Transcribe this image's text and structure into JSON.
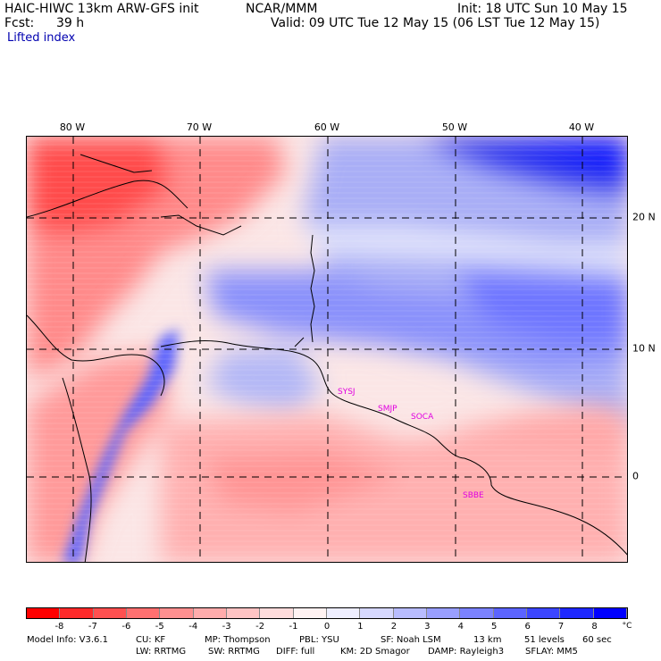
{
  "header": {
    "model_title": "HAIC-HIWC 13km ARW-GFS init",
    "org": "NCAR/MMM",
    "init": "Init: 18 UTC Sun 10 May 15",
    "fcst_label": "Fcst:",
    "fcst_value": "39 h",
    "valid": "Valid: 09 UTC Tue 12 May 15 (06 LST Tue 12 May 15)",
    "field": "Lifted index"
  },
  "map": {
    "lon_labels": [
      "80 W",
      "70 W",
      "60 W",
      "50 W",
      "40 W"
    ],
    "lat_labels": [
      "20 N",
      "10 N",
      "0"
    ],
    "places": [
      "SYSJ",
      "SMJP",
      "SOCA",
      "SBBE"
    ]
  },
  "colorbar": {
    "ticks": [
      "-8",
      "-7",
      "-6",
      "-5",
      "-4",
      "-3",
      "-2",
      "-1",
      "0",
      "1",
      "2",
      "3",
      "4",
      "5",
      "6",
      "7",
      "8"
    ],
    "unit": "°C",
    "colors": [
      "#ff0000",
      "#ff2a2a",
      "#ff5050",
      "#ff7070",
      "#ff9090",
      "#ffacac",
      "#ffc4c4",
      "#ffdcdc",
      "#fff2f2",
      "#eeeeff",
      "#d6d8ff",
      "#b8bcff",
      "#999fff",
      "#7b82ff",
      "#5c64ff",
      "#3c46ff",
      "#1e28ff",
      "#0000ff"
    ]
  },
  "footer": {
    "line1": [
      "Model Info: V3.6.1",
      "CU: KF",
      "MP: Thompson",
      "PBL: YSU",
      "SF: Noah LSM",
      "13 km",
      "51 levels",
      "60 sec"
    ],
    "line2": [
      "LW: RRTMG",
      "SW: RRTMG",
      "DIFF: full",
      "KM: 2D Smagor",
      "DAMP: Rayleigh3",
      "SFLAY: MM5"
    ]
  }
}
